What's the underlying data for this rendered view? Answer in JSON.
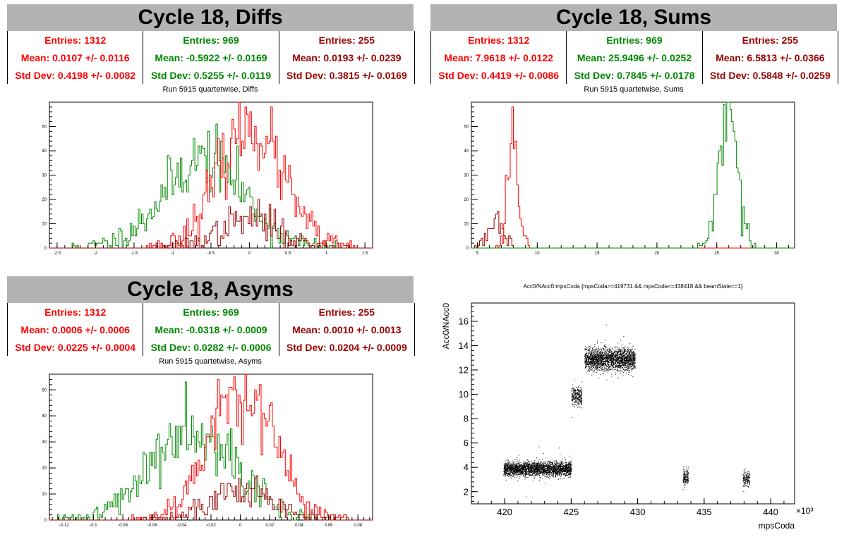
{
  "colors": {
    "red": "#ff0000",
    "green": "#008800",
    "darkred": "#990000",
    "black": "#000000"
  },
  "panels": [
    {
      "id": "diffs",
      "banner": "Cycle 18, Diffs",
      "title": "Run 5915 quartetwise, Diffs",
      "stats": [
        {
          "color": "red",
          "entries": "Entries: 1312",
          "mean": "Mean: 0.0107 +/- 0.0116",
          "std": "Std Dev: 0.4198 +/- 0.0082"
        },
        {
          "color": "green",
          "entries": "Entries: 969",
          "mean": "Mean: -0.5922 +/- 0.0169",
          "std": "Std Dev: 0.5255 +/- 0.0119"
        },
        {
          "color": "darkred",
          "entries": "Entries: 255",
          "mean": "Mean: 0.0193 +/- 0.0239",
          "std": "Std Dev: 0.3815 +/- 0.0169"
        }
      ]
    },
    {
      "id": "sums",
      "banner": "Cycle 18, Sums",
      "title": "Run 5915 quartetwise, Sums",
      "stats": [
        {
          "color": "red",
          "entries": "Entries: 1312",
          "mean": "Mean: 7.9618 +/- 0.0122",
          "std": "Std Dev: 0.4419 +/- 0.0086"
        },
        {
          "color": "green",
          "entries": "Entries: 969",
          "mean": "Mean: 25.9496 +/- 0.0252",
          "std": "Std Dev: 0.7845 +/- 0.0178"
        },
        {
          "color": "darkred",
          "entries": "Entries: 255",
          "mean": "Mean: 6.5813 +/- 0.0366",
          "std": "Std Dev: 0.5848 +/- 0.0259"
        }
      ]
    },
    {
      "id": "asyms",
      "banner": "Cycle 18, Asyms",
      "title": "Run 5915 quartetwise, Asyms",
      "stats": [
        {
          "color": "red",
          "entries": "Entries: 1312",
          "mean": "Mean: 0.0006 +/- 0.0006",
          "std": "Std Dev: 0.0225 +/- 0.0004"
        },
        {
          "color": "green",
          "entries": "Entries: 969",
          "mean": "Mean: -0.0318 +/- 0.0009",
          "std": "Std Dev: 0.0282 +/- 0.0006"
        },
        {
          "color": "darkred",
          "entries": "Entries: 255",
          "mean": "Mean: 0.0010 +/- 0.0013",
          "std": "Std Dev: 0.0204 +/- 0.0009"
        }
      ]
    }
  ],
  "scatter_title": "Acc0/NAcc0:mpsCoda {mpsCoda>=419731 && mpsCoda<=438418 && beamState==1}",
  "chart_data": [
    {
      "type": "histogram",
      "id": "diffs",
      "xlim": [
        -2.6,
        1.6
      ],
      "ylim": [
        0,
        60
      ],
      "xticks": [
        -2.5,
        -2,
        -1.5,
        -1,
        -0.5,
        0,
        0.5,
        1,
        1.5
      ],
      "xtick_labels": [
        "-2.5",
        "-2",
        "-1.5",
        "-1",
        "-0.5",
        "0",
        "0.5",
        "1",
        "1.5"
      ],
      "yticks": [
        0,
        10,
        20,
        30,
        40,
        50
      ],
      "series": [
        {
          "color": "green",
          "mean": -0.5922,
          "std": 0.5255,
          "peak": 37,
          "seed": 11
        },
        {
          "color": "red",
          "mean": 0.0107,
          "std": 0.4198,
          "peak": 50,
          "seed": 23
        },
        {
          "color": "darkred",
          "mean": 0.0193,
          "std": 0.3815,
          "peak": 12,
          "seed": 37
        }
      ]
    },
    {
      "type": "histogram",
      "id": "sums",
      "xlim": [
        4.5,
        31.5
      ],
      "ylim": [
        0,
        60
      ],
      "xticks": [
        5,
        10,
        15,
        20,
        25,
        30
      ],
      "xtick_labels": [
        "5",
        "10",
        "15",
        "20",
        "25",
        "30"
      ],
      "yticks": [
        0,
        10,
        20,
        30,
        40,
        50
      ],
      "series": [
        {
          "color": "darkred",
          "mean": 6.5813,
          "std": 0.5848,
          "peak": 13,
          "seed": 5
        },
        {
          "color": "red",
          "mean": 7.9618,
          "std": 0.4419,
          "peak": 48,
          "seed": 17
        },
        {
          "color": "green",
          "mean": 25.9496,
          "std": 0.7845,
          "peak": 52,
          "seed": 29
        }
      ]
    },
    {
      "type": "histogram",
      "id": "asyms",
      "xlim": [
        -0.13,
        0.09
      ],
      "ylim": [
        0,
        56
      ],
      "xticks": [
        -0.12,
        -0.1,
        -0.08,
        -0.06,
        -0.04,
        -0.02,
        0,
        0.02,
        0.04,
        0.06,
        0.08
      ],
      "xtick_labels": [
        "-0.12",
        "-0.1",
        "-0.08",
        "-0.06",
        "-0.04",
        "-0.02",
        "0",
        "0.02",
        "0.04",
        "0.06",
        "0.08"
      ],
      "yticks": [
        0,
        10,
        20,
        30,
        40,
        50
      ],
      "series": [
        {
          "color": "green",
          "mean": -0.0318,
          "std": 0.0282,
          "peak": 37,
          "seed": 41
        },
        {
          "color": "red",
          "mean": 0.0006,
          "std": 0.0225,
          "peak": 50,
          "seed": 53
        },
        {
          "color": "darkred",
          "mean": 0.001,
          "std": 0.0204,
          "peak": 12,
          "seed": 61
        }
      ]
    },
    {
      "type": "scatter",
      "id": "acc0",
      "xlim": [
        417.5,
        441.8
      ],
      "ylim": [
        1,
        17.5
      ],
      "xticks": [
        420,
        425,
        430,
        435,
        440
      ],
      "xtick_labels": [
        "420",
        "425",
        "430",
        "435",
        "440"
      ],
      "yticks": [
        2,
        4,
        6,
        8,
        10,
        12,
        14,
        16
      ],
      "ytick_labels": [
        "2",
        "4",
        "6",
        "8",
        "10",
        "12",
        "14",
        "16"
      ],
      "xlabel": "mpsCoda",
      "ylabel": "Acc0/NAcc0",
      "x_exponent": "×10³",
      "clusters": [
        {
          "x": [
            419.9,
            425.0
          ],
          "y_mean": 3.9,
          "y_sd": 0.28,
          "n": 2600
        },
        {
          "x": [
            425.0,
            425.8
          ],
          "y_mean": 9.9,
          "y_sd": 0.45,
          "n": 280
        },
        {
          "x": [
            426.0,
            429.8
          ],
          "y_mean": 12.9,
          "y_sd": 0.45,
          "n": 2200
        },
        {
          "x": [
            433.4,
            433.8
          ],
          "y_mean": 3.2,
          "y_sd": 0.32,
          "n": 140
        },
        {
          "x": [
            437.9,
            438.4
          ],
          "y_mean": 3.1,
          "y_sd": 0.32,
          "n": 140
        }
      ]
    }
  ]
}
